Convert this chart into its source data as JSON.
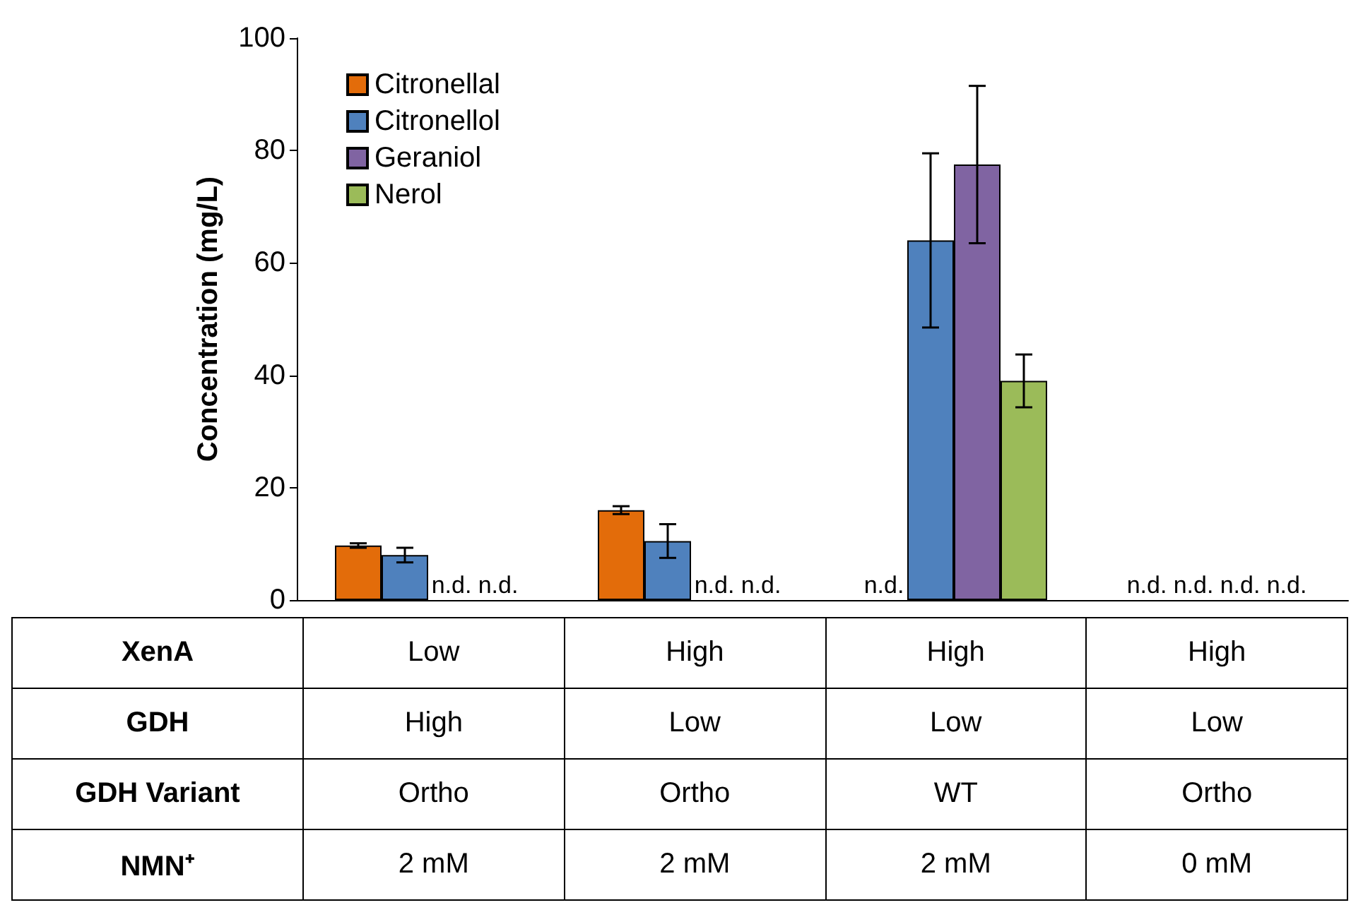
{
  "chart_data": {
    "type": "bar",
    "ylabel": "Concentration (mg/L)",
    "categories": [
      null,
      null,
      null,
      null
    ],
    "series": [
      {
        "name": "Citronellal",
        "color": "#e36c0a",
        "values": [
          9.7,
          16,
          null,
          null
        ],
        "errors": [
          0.4,
          0.7,
          null,
          null
        ],
        "value_labels": [
          null,
          null,
          "n.d.",
          "n.d."
        ]
      },
      {
        "name": "Citronellol",
        "color": "#4f81bd",
        "values": [
          8,
          10.5,
          64,
          null
        ],
        "errors": [
          1.3,
          3,
          15.5,
          null
        ],
        "value_labels": [
          null,
          null,
          null,
          "n.d."
        ]
      },
      {
        "name": "Geraniol",
        "color": "#8064a2",
        "values": [
          null,
          null,
          77.5,
          null
        ],
        "errors": [
          null,
          null,
          14,
          null
        ],
        "value_labels": [
          "n.d.",
          "n.d.",
          null,
          "n.d."
        ]
      },
      {
        "name": "Nerol",
        "color": "#9bbb59",
        "values": [
          null,
          null,
          39,
          null
        ],
        "errors": [
          null,
          null,
          4.7,
          null
        ],
        "value_labels": [
          "n.d.",
          "n.d.",
          null,
          "n.d."
        ]
      }
    ],
    "ylim": [
      0,
      100
    ],
    "yticks": [
      0,
      20,
      40,
      60,
      80,
      100
    ],
    "grid": false,
    "legend": "top left",
    "annotations": [
      "XenA",
      "Low",
      "High",
      "High",
      "High",
      "GDH",
      "High",
      "Low",
      "Low",
      "Low",
      "GDH Variant",
      "Ortho",
      "Ortho",
      "WT",
      "Ortho",
      "NMN⁺",
      "2 mM",
      "2 mM",
      "2 mM",
      "0 mM"
    ]
  }
}
